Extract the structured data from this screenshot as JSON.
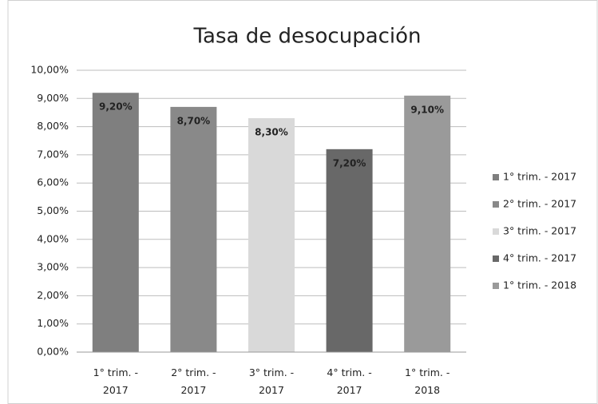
{
  "chart_data": {
    "type": "bar",
    "title": "Tasa de desocupación",
    "categories": [
      "1° trim. - 2017",
      "2° trim. - 2017",
      "3° trim. - 2017",
      "4° trim. - 2017",
      "1° trim. - 2018"
    ],
    "values": [
      9.2,
      8.7,
      8.3,
      7.2,
      9.1
    ],
    "value_labels": [
      "9,20%",
      "8,70%",
      "8,30%",
      "7,20%",
      "9,10%"
    ],
    "colors": [
      "#7f7f7f",
      "#898989",
      "#d9d9d9",
      "#686868",
      "#9a9a9a"
    ],
    "ylim": [
      0,
      10
    ],
    "yticks": [
      {
        "value": 0,
        "label": "0,00%"
      },
      {
        "value": 1,
        "label": "1,00%"
      },
      {
        "value": 2,
        "label": "2,00%"
      },
      {
        "value": 3,
        "label": "3,00%"
      },
      {
        "value": 4,
        "label": "4,00%"
      },
      {
        "value": 5,
        "label": "5,00%"
      },
      {
        "value": 6,
        "label": "6,00%"
      },
      {
        "value": 7,
        "label": "7,00%"
      },
      {
        "value": 8,
        "label": "8,00%"
      },
      {
        "value": 9,
        "label": "9,00%"
      },
      {
        "value": 10,
        "label": "10,00%"
      }
    ],
    "grid": true,
    "legend": "right"
  }
}
